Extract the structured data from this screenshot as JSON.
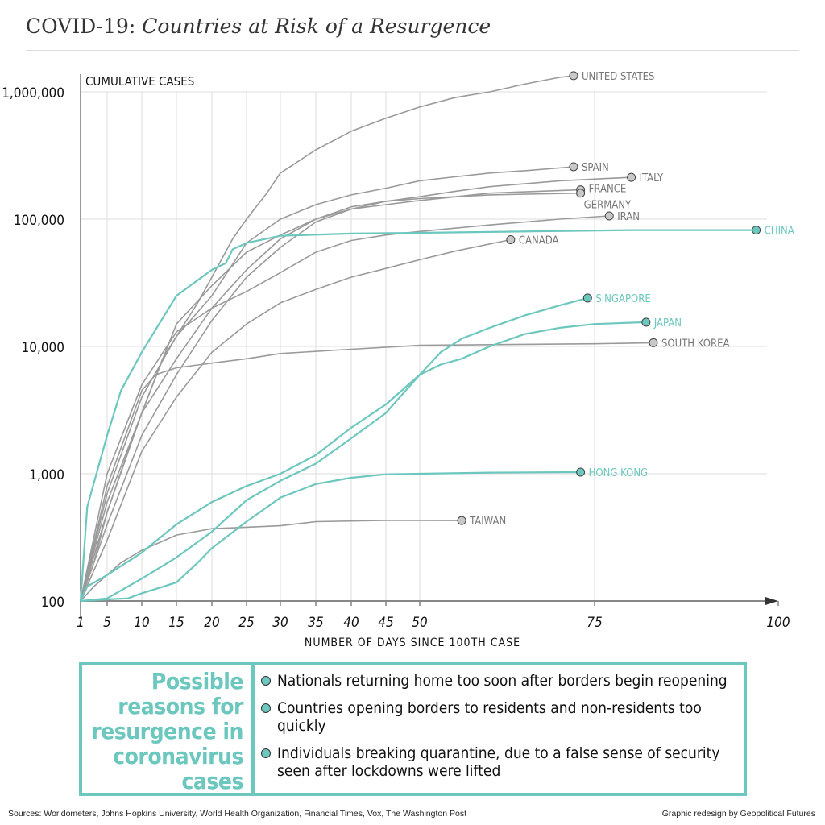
{
  "title": {
    "prefix": "COVID-19:",
    "italic": "Countries at Risk of a Resurgence"
  },
  "chart_data": {
    "type": "line",
    "ylabel": "CUMULATIVE CASES",
    "xlabel": "NUMBER OF DAYS SINCE 100TH CASE",
    "yscale": "log",
    "ylim": [
      100,
      1000000
    ],
    "yticks": [
      {
        "v": 100,
        "label": "100"
      },
      {
        "v": 1000,
        "label": "1,000"
      },
      {
        "v": 10000,
        "label": "10,000"
      },
      {
        "v": 100000,
        "label": "100,000"
      },
      {
        "v": 1000000,
        "label": "1,000,000"
      }
    ],
    "xticks": [
      1,
      5,
      10,
      15,
      20,
      25,
      30,
      35,
      40,
      45,
      50,
      75,
      100
    ],
    "xlim": [
      1,
      100
    ],
    "grid": true,
    "colors": {
      "highlight": "#6cc7be",
      "other": "#9a9a9a",
      "marker_other": "#c8c8c8"
    },
    "series": [
      {
        "name": "UNITED STATES",
        "group": "other",
        "points": [
          [
            1,
            100
          ],
          [
            3,
            200
          ],
          [
            5,
            500
          ],
          [
            8,
            1500
          ],
          [
            10,
            3000
          ],
          [
            13,
            8000
          ],
          [
            15,
            12000
          ],
          [
            18,
            22000
          ],
          [
            20,
            35000
          ],
          [
            23,
            70000
          ],
          [
            25,
            100000
          ],
          [
            28,
            160000
          ],
          [
            30,
            230000
          ],
          [
            35,
            350000
          ],
          [
            40,
            490000
          ],
          [
            45,
            620000
          ],
          [
            50,
            760000
          ],
          [
            55,
            900000
          ],
          [
            60,
            1000000
          ],
          [
            65,
            1150000
          ],
          [
            70,
            1300000
          ],
          [
            72,
            1340000
          ]
        ]
      },
      {
        "name": "SPAIN",
        "group": "other",
        "points": [
          [
            1,
            100
          ],
          [
            5,
            700
          ],
          [
            10,
            4000
          ],
          [
            15,
            12000
          ],
          [
            20,
            25000
          ],
          [
            25,
            65000
          ],
          [
            30,
            100000
          ],
          [
            35,
            130000
          ],
          [
            40,
            155000
          ],
          [
            45,
            175000
          ],
          [
            50,
            200000
          ],
          [
            55,
            215000
          ],
          [
            60,
            230000
          ],
          [
            65,
            240000
          ],
          [
            72,
            258000
          ]
        ]
      },
      {
        "name": "ITALY",
        "group": "other",
        "points": [
          [
            1,
            100
          ],
          [
            5,
            600
          ],
          [
            10,
            3000
          ],
          [
            15,
            8000
          ],
          [
            20,
            20000
          ],
          [
            25,
            40000
          ],
          [
            30,
            70000
          ],
          [
            35,
            100000
          ],
          [
            40,
            120000
          ],
          [
            45,
            138000
          ],
          [
            50,
            150000
          ],
          [
            55,
            165000
          ],
          [
            60,
            180000
          ],
          [
            70,
            200000
          ],
          [
            80,
            213000
          ]
        ]
      },
      {
        "name": "FRANCE",
        "group": "other",
        "points": [
          [
            1,
            100
          ],
          [
            5,
            400
          ],
          [
            10,
            2000
          ],
          [
            15,
            6000
          ],
          [
            20,
            16000
          ],
          [
            25,
            35000
          ],
          [
            30,
            60000
          ],
          [
            35,
            95000
          ],
          [
            40,
            120000
          ],
          [
            45,
            130000
          ],
          [
            50,
            140000
          ],
          [
            60,
            160000
          ],
          [
            73,
            170000
          ]
        ]
      },
      {
        "name": "GERMANY",
        "group": "other",
        "points": [
          [
            1,
            100
          ],
          [
            5,
            500
          ],
          [
            10,
            3000
          ],
          [
            15,
            15000
          ],
          [
            20,
            30000
          ],
          [
            25,
            55000
          ],
          [
            30,
            75000
          ],
          [
            35,
            100000
          ],
          [
            40,
            125000
          ],
          [
            45,
            138000
          ],
          [
            50,
            145000
          ],
          [
            60,
            155000
          ],
          [
            73,
            160000
          ]
        ]
      },
      {
        "name": "IRAN",
        "group": "other",
        "points": [
          [
            1,
            100
          ],
          [
            5,
            1000
          ],
          [
            10,
            5000
          ],
          [
            15,
            13000
          ],
          [
            20,
            20000
          ],
          [
            25,
            27000
          ],
          [
            30,
            38000
          ],
          [
            35,
            55000
          ],
          [
            40,
            68000
          ],
          [
            45,
            75000
          ],
          [
            50,
            80000
          ],
          [
            60,
            90000
          ],
          [
            70,
            100000
          ],
          [
            77,
            106000
          ]
        ]
      },
      {
        "name": "CANADA",
        "group": "other",
        "points": [
          [
            1,
            100
          ],
          [
            5,
            300
          ],
          [
            10,
            1500
          ],
          [
            15,
            4000
          ],
          [
            20,
            9000
          ],
          [
            25,
            15000
          ],
          [
            30,
            22000
          ],
          [
            35,
            28000
          ],
          [
            40,
            35000
          ],
          [
            45,
            41000
          ],
          [
            50,
            48000
          ],
          [
            55,
            56000
          ],
          [
            63,
            69000
          ]
        ]
      },
      {
        "name": "CHINA",
        "group": "highlight",
        "points": [
          [
            1,
            100
          ],
          [
            2,
            550
          ],
          [
            5,
            2000
          ],
          [
            7,
            4500
          ],
          [
            10,
            9000
          ],
          [
            15,
            25000
          ],
          [
            20,
            40000
          ],
          [
            22,
            45000
          ],
          [
            23,
            58000
          ],
          [
            25,
            65000
          ],
          [
            30,
            74000
          ],
          [
            40,
            77000
          ],
          [
            50,
            78000
          ],
          [
            80,
            82000
          ],
          [
            97,
            82000
          ]
        ]
      },
      {
        "name": "SINGAPORE",
        "group": "highlight",
        "points": [
          [
            1,
            100
          ],
          [
            5,
            105
          ],
          [
            10,
            150
          ],
          [
            15,
            220
          ],
          [
            20,
            350
          ],
          [
            25,
            620
          ],
          [
            30,
            880
          ],
          [
            35,
            1200
          ],
          [
            40,
            1900
          ],
          [
            45,
            3000
          ],
          [
            50,
            6000
          ],
          [
            53,
            9000
          ],
          [
            56,
            11500
          ],
          [
            60,
            14000
          ],
          [
            65,
            17500
          ],
          [
            70,
            21000
          ],
          [
            74,
            24000
          ]
        ]
      },
      {
        "name": "JAPAN",
        "group": "highlight",
        "points": [
          [
            1,
            100
          ],
          [
            2,
            130
          ],
          [
            5,
            160
          ],
          [
            10,
            240
          ],
          [
            15,
            400
          ],
          [
            20,
            600
          ],
          [
            25,
            800
          ],
          [
            30,
            1000
          ],
          [
            35,
            1400
          ],
          [
            40,
            2300
          ],
          [
            45,
            3500
          ],
          [
            50,
            6000
          ],
          [
            53,
            7200
          ],
          [
            56,
            8000
          ],
          [
            60,
            10000
          ],
          [
            65,
            12500
          ],
          [
            70,
            14000
          ],
          [
            75,
            15000
          ],
          [
            82,
            15500
          ]
        ]
      },
      {
        "name": "SOUTH KOREA",
        "group": "other",
        "points": [
          [
            1,
            100
          ],
          [
            5,
            800
          ],
          [
            10,
            4500
          ],
          [
            12,
            6000
          ],
          [
            15,
            6800
          ],
          [
            20,
            7400
          ],
          [
            25,
            8000
          ],
          [
            30,
            8800
          ],
          [
            40,
            9500
          ],
          [
            50,
            10200
          ],
          [
            75,
            10500
          ],
          [
            83,
            10700
          ]
        ]
      },
      {
        "name": "HONG KONG",
        "group": "highlight",
        "points": [
          [
            1,
            100
          ],
          [
            5,
            103
          ],
          [
            8,
            105
          ],
          [
            10,
            115
          ],
          [
            15,
            140
          ],
          [
            18,
            200
          ],
          [
            20,
            260
          ],
          [
            25,
            420
          ],
          [
            30,
            650
          ],
          [
            35,
            830
          ],
          [
            40,
            930
          ],
          [
            45,
            990
          ],
          [
            50,
            1000
          ],
          [
            60,
            1020
          ],
          [
            73,
            1030
          ]
        ]
      },
      {
        "name": "TAIWAN",
        "group": "other",
        "points": [
          [
            1,
            100
          ],
          [
            3,
            130
          ],
          [
            7,
            200
          ],
          [
            10,
            250
          ],
          [
            15,
            330
          ],
          [
            20,
            370
          ],
          [
            25,
            380
          ],
          [
            30,
            390
          ],
          [
            35,
            420
          ],
          [
            45,
            430
          ],
          [
            56,
            429
          ]
        ]
      }
    ]
  },
  "reasons": {
    "heading": "Possible reasons for resurgence in coronavirus cases",
    "items": [
      "Nationals returning home too soon after borders begin reopening",
      "Countries opening borders to residents and non-residents too quickly",
      "Individuals breaking quarantine, due to a false sense of security seen after lockdowns were lifted"
    ]
  },
  "footer": {
    "sources": "Sources: Worldometers, Johns Hopkins University, World Health Organization, Financial Times, Vox, The Washington Post",
    "credit": "Graphic redesign by Geopolitical Futures"
  }
}
